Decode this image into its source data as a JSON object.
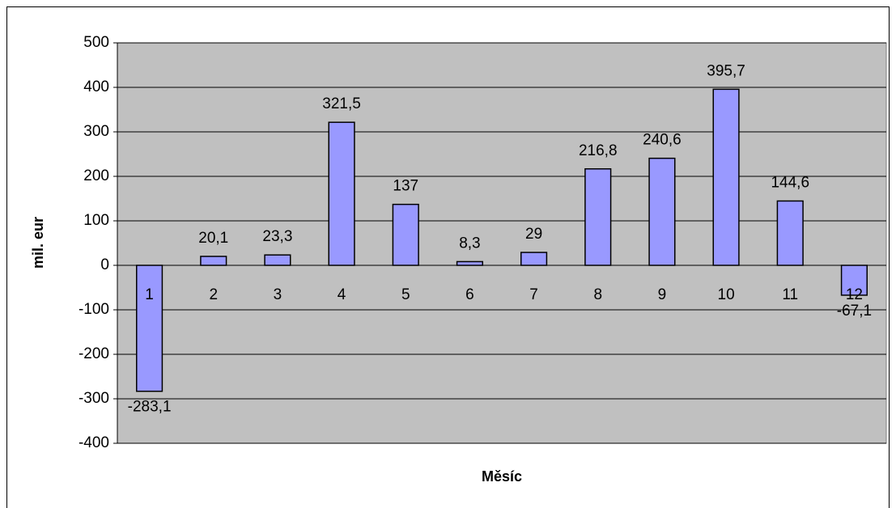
{
  "chart_data": {
    "type": "bar",
    "categories": [
      "1",
      "2",
      "3",
      "4",
      "5",
      "6",
      "7",
      "8",
      "9",
      "10",
      "11",
      "12"
    ],
    "values": [
      -283.1,
      20.1,
      23.3,
      321.5,
      137,
      8.3,
      29,
      216.8,
      240.6,
      395.7,
      144.6,
      -67.1
    ],
    "value_labels": [
      "-283,1",
      "20,1",
      "23,3",
      "321,5",
      "137",
      "8,3",
      "29",
      "216,8",
      "240,6",
      "395,7",
      "144,6",
      "-67,1"
    ],
    "color": "#9999ff",
    "ylim": [
      -400,
      500
    ],
    "yticks": [
      -400,
      -300,
      -200,
      -100,
      0,
      100,
      200,
      300,
      400,
      500
    ],
    "grid": true,
    "ylabel": "mil. eur",
    "xlabel": "Měsíc"
  }
}
